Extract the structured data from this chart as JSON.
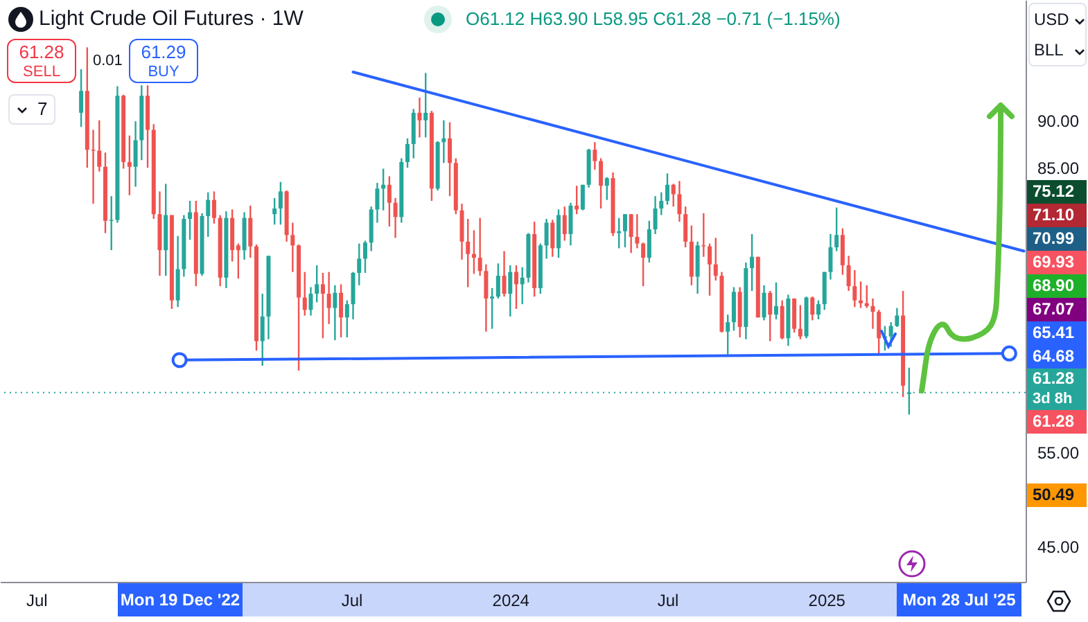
{
  "chart_data": {
    "type": "candlestick",
    "title": "Light Crude Oil Futures · 1W",
    "subtitle": "O61.12 H63.90 L58.95 C61.28 −0.71 (−1.15%)",
    "x": [
      "2022-08-22",
      "2022-08-29",
      "2022-09-05",
      "2022-09-12",
      "2022-09-19",
      "2022-09-26",
      "2022-10-03",
      "2022-10-10",
      "2022-10-17",
      "2022-10-24",
      "2022-10-31",
      "2022-11-07",
      "2022-11-14",
      "2022-11-21",
      "2022-11-28",
      "2022-12-05",
      "2022-12-12",
      "2022-12-19",
      "2022-12-26",
      "2023-01-02",
      "2023-01-09",
      "2023-01-16",
      "2023-01-23",
      "2023-01-30",
      "2023-02-06",
      "2023-02-13",
      "2023-02-20",
      "2023-02-27",
      "2023-03-06",
      "2023-03-13",
      "2023-03-20",
      "2023-03-27",
      "2023-04-03",
      "2023-04-10",
      "2023-04-17",
      "2023-04-24",
      "2023-05-01",
      "2023-05-08",
      "2023-05-15",
      "2023-05-22",
      "2023-05-29",
      "2023-06-05",
      "2023-06-12",
      "2023-06-19",
      "2023-06-26",
      "2023-07-03",
      "2023-07-10",
      "2023-07-17",
      "2023-07-24",
      "2023-07-31",
      "2023-08-07",
      "2023-08-14",
      "2023-08-21",
      "2023-08-28",
      "2023-09-04",
      "2023-09-11",
      "2023-09-18",
      "2023-09-25",
      "2023-10-02",
      "2023-10-09",
      "2023-10-16",
      "2023-10-23",
      "2023-10-30",
      "2023-11-06",
      "2023-11-13",
      "2023-11-20",
      "2023-11-27",
      "2023-12-04",
      "2023-12-11",
      "2023-12-18",
      "2023-12-25",
      "2024-01-01",
      "2024-01-08",
      "2024-01-15",
      "2024-01-22",
      "2024-01-29",
      "2024-02-05",
      "2024-02-12",
      "2024-02-19",
      "2024-02-26",
      "2024-03-04",
      "2024-03-11",
      "2024-03-18",
      "2024-03-25",
      "2024-04-01",
      "2024-04-08",
      "2024-04-15",
      "2024-04-22",
      "2024-04-29",
      "2024-05-06",
      "2024-05-13",
      "2024-05-20",
      "2024-05-27",
      "2024-06-03",
      "2024-06-10",
      "2024-06-17",
      "2024-06-24",
      "2024-07-01",
      "2024-07-08",
      "2024-07-15",
      "2024-07-22",
      "2024-07-29",
      "2024-08-05",
      "2024-08-12",
      "2024-08-19",
      "2024-08-26",
      "2024-09-02",
      "2024-09-09",
      "2024-09-16",
      "2024-09-23",
      "2024-09-30",
      "2024-10-07",
      "2024-10-14",
      "2024-10-21",
      "2024-10-28",
      "2024-11-04",
      "2024-11-11",
      "2024-11-18",
      "2024-11-25",
      "2024-12-02",
      "2024-12-09",
      "2024-12-16",
      "2024-12-23",
      "2024-12-30",
      "2025-01-06",
      "2025-01-13",
      "2025-01-20",
      "2025-01-27",
      "2025-02-03",
      "2025-02-10",
      "2025-02-17",
      "2025-02-24",
      "2025-03-03",
      "2025-03-10",
      "2025-03-17",
      "2025-03-24",
      "2025-03-31",
      "2025-04-07"
    ],
    "ohlc": [
      [
        90.8,
        95.4,
        89.3,
        93.1
      ],
      [
        93.1,
        97.7,
        85.0,
        86.9
      ],
      [
        86.9,
        89.0,
        81.2,
        86.8
      ],
      [
        86.8,
        90.0,
        84.6,
        85.1
      ],
      [
        85.1,
        86.6,
        78.1,
        79.4
      ],
      [
        79.4,
        82.0,
        76.3,
        79.5
      ],
      [
        79.5,
        93.6,
        79.2,
        92.6
      ],
      [
        92.6,
        92.7,
        84.9,
        85.6
      ],
      [
        85.6,
        88.4,
        82.1,
        85.1
      ],
      [
        85.1,
        89.9,
        83.0,
        87.9
      ],
      [
        87.9,
        93.7,
        85.8,
        92.6
      ],
      [
        92.6,
        93.7,
        85.0,
        89.0
      ],
      [
        89.0,
        89.6,
        79.6,
        80.1
      ],
      [
        80.1,
        82.5,
        73.6,
        76.3
      ],
      [
        76.3,
        83.3,
        73.6,
        80.0
      ],
      [
        80.0,
        80.0,
        70.1,
        71.0
      ],
      [
        71.0,
        77.8,
        70.3,
        74.3
      ],
      [
        74.3,
        80.0,
        73.5,
        79.6
      ],
      [
        79.6,
        81.5,
        77.4,
        80.3
      ],
      [
        80.3,
        81.5,
        72.5,
        73.8
      ],
      [
        73.8,
        80.2,
        73.6,
        79.9
      ],
      [
        79.9,
        82.4,
        77.7,
        81.6
      ],
      [
        81.6,
        82.5,
        79.1,
        79.7
      ],
      [
        79.7,
        80.0,
        72.5,
        73.4
      ],
      [
        73.4,
        80.4,
        72.3,
        79.7
      ],
      [
        79.7,
        80.6,
        75.1,
        76.3
      ],
      [
        76.8,
        77.0,
        73.3,
        76.3
      ],
      [
        76.3,
        80.3,
        75.3,
        79.7
      ],
      [
        79.7,
        81.0,
        75.5,
        76.7
      ],
      [
        76.7,
        76.9,
        65.7,
        66.7
      ],
      [
        66.7,
        71.7,
        64.1,
        69.3
      ],
      [
        69.3,
        75.7,
        66.9,
        75.7
      ],
      [
        80.1,
        81.8,
        79.0,
        80.7
      ],
      [
        80.7,
        83.5,
        79.0,
        82.5
      ],
      [
        82.5,
        82.6,
        77.2,
        77.9
      ],
      [
        77.9,
        79.2,
        74.0,
        76.8
      ],
      [
        76.8,
        76.9,
        63.6,
        71.3
      ],
      [
        71.3,
        74.0,
        69.4,
        70.0
      ],
      [
        70.0,
        72.4,
        69.4,
        71.7
      ],
      [
        71.7,
        74.7,
        70.8,
        72.7
      ],
      [
        72.7,
        73.9,
        67.0,
        71.7
      ],
      [
        71.7,
        74.0,
        68.5,
        70.2
      ],
      [
        70.2,
        72.6,
        66.8,
        71.8
      ],
      [
        71.8,
        72.7,
        67.1,
        69.2
      ],
      [
        69.2,
        71.0,
        67.1,
        70.6
      ],
      [
        70.6,
        74.0,
        69.0,
        73.9
      ],
      [
        73.9,
        77.0,
        72.6,
        75.4
      ],
      [
        75.4,
        77.3,
        73.9,
        77.1
      ],
      [
        77.1,
        80.9,
        76.2,
        80.6
      ],
      [
        80.6,
        83.4,
        79.2,
        82.8
      ],
      [
        82.8,
        84.9,
        80.5,
        83.2
      ],
      [
        83.2,
        84.1,
        78.8,
        81.3
      ],
      [
        81.3,
        81.8,
        77.6,
        79.8
      ],
      [
        79.8,
        86.0,
        79.2,
        85.6
      ],
      [
        85.6,
        88.1,
        85.0,
        87.5
      ],
      [
        87.5,
        91.2,
        86.0,
        90.8
      ],
      [
        90.8,
        92.4,
        88.2,
        90.0
      ],
      [
        90.0,
        95.0,
        88.2,
        90.8
      ],
      [
        90.8,
        91.0,
        81.5,
        82.8
      ],
      [
        82.8,
        87.8,
        82.6,
        87.7
      ],
      [
        87.7,
        90.0,
        85.5,
        88.1
      ],
      [
        88.1,
        89.8,
        82.0,
        85.5
      ],
      [
        85.5,
        86.0,
        80.1,
        80.5
      ],
      [
        80.5,
        81.2,
        75.3,
        77.2
      ],
      [
        77.2,
        79.6,
        72.4,
        75.9
      ],
      [
        75.9,
        78.4,
        73.8,
        75.5
      ],
      [
        75.5,
        79.7,
        73.6,
        74.1
      ],
      [
        74.1,
        74.8,
        67.7,
        71.2
      ],
      [
        71.2,
        72.3,
        68.0,
        71.4
      ],
      [
        71.4,
        74.9,
        71.2,
        73.6
      ],
      [
        73.6,
        76.2,
        71.4,
        71.7
      ],
      [
        71.7,
        74.7,
        69.3,
        74.0
      ],
      [
        74.0,
        74.7,
        70.1,
        72.7
      ],
      [
        72.7,
        74.5,
        70.6,
        73.4
      ],
      [
        73.4,
        78.1,
        72.9,
        78.0
      ],
      [
        78.0,
        79.3,
        71.4,
        72.3
      ],
      [
        72.3,
        77.0,
        71.7,
        76.8
      ],
      [
        76.8,
        79.6,
        75.4,
        79.2
      ],
      [
        79.2,
        79.5,
        75.6,
        76.5
      ],
      [
        76.5,
        80.6,
        75.5,
        80.0
      ],
      [
        80.0,
        80.9,
        77.3,
        78.0
      ],
      [
        78.0,
        81.3,
        76.8,
        81.0
      ],
      [
        81.0,
        83.1,
        80.1,
        80.6
      ],
      [
        80.6,
        83.2,
        80.5,
        83.2
      ],
      [
        83.2,
        87.0,
        82.9,
        86.9
      ],
      [
        86.9,
        87.7,
        84.8,
        85.7
      ],
      [
        85.7,
        86.0,
        80.7,
        83.1
      ],
      [
        83.1,
        84.0,
        81.6,
        83.9
      ],
      [
        83.9,
        84.5,
        77.8,
        78.1
      ],
      [
        78.1,
        79.7,
        76.5,
        78.3
      ],
      [
        78.3,
        80.1,
        76.6,
        80.1
      ],
      [
        80.1,
        80.1,
        76.0,
        77.7
      ],
      [
        77.7,
        80.1,
        76.5,
        77.0
      ],
      [
        77.0,
        77.1,
        72.5,
        75.5
      ],
      [
        75.5,
        79.4,
        75.0,
        78.5
      ],
      [
        78.5,
        82.0,
        78.0,
        80.7
      ],
      [
        80.7,
        82.4,
        80.0,
        81.5
      ],
      [
        81.5,
        84.4,
        81.1,
        83.2
      ],
      [
        83.2,
        83.3,
        80.9,
        82.2
      ],
      [
        82.2,
        83.6,
        79.3,
        80.1
      ],
      [
        80.1,
        80.9,
        76.6,
        77.2
      ],
      [
        77.2,
        78.9,
        72.6,
        73.5
      ],
      [
        73.5,
        77.2,
        71.7,
        76.8
      ],
      [
        76.8,
        80.2,
        75.6,
        76.7
      ],
      [
        76.7,
        77.0,
        71.5,
        74.8
      ],
      [
        74.8,
        77.6,
        73.1,
        73.6
      ],
      [
        73.6,
        74.0,
        67.6,
        67.7
      ],
      [
        67.7,
        69.5,
        65.3,
        68.7
      ],
      [
        68.7,
        72.4,
        67.8,
        71.9
      ],
      [
        71.9,
        72.4,
        67.1,
        68.2
      ],
      [
        68.2,
        75.0,
        66.9,
        74.4
      ],
      [
        74.4,
        78.0,
        72.0,
        75.6
      ],
      [
        75.6,
        75.6,
        69.2,
        69.2
      ],
      [
        69.2,
        72.6,
        68.9,
        71.8
      ],
      [
        71.8,
        72.0,
        66.7,
        69.5
      ],
      [
        69.5,
        72.9,
        69.0,
        70.4
      ],
      [
        70.4,
        71.0,
        66.9,
        67.0
      ],
      [
        67.0,
        71.6,
        66.2,
        71.2
      ],
      [
        71.2,
        71.2,
        67.6,
        68.0
      ],
      [
        68.0,
        70.5,
        66.9,
        67.2
      ],
      [
        67.2,
        71.4,
        67.0,
        71.3
      ],
      [
        71.3,
        71.4,
        68.9,
        69.5
      ],
      [
        69.5,
        71.0,
        69.0,
        70.6
      ],
      [
        70.6,
        74.0,
        70.0,
        74.0
      ],
      [
        74.0,
        78.0,
        73.2,
        76.6
      ],
      [
        76.6,
        80.8,
        76.2,
        77.9
      ],
      [
        77.9,
        78.6,
        73.7,
        74.7
      ],
      [
        74.7,
        75.7,
        72.0,
        72.5
      ],
      [
        72.5,
        74.2,
        70.3,
        71.0
      ],
      [
        71.0,
        73.0,
        70.2,
        70.7
      ],
      [
        70.7,
        72.6,
        70.2,
        70.4
      ],
      [
        70.4,
        71.2,
        68.0,
        69.8
      ],
      [
        69.8,
        70.0,
        65.2,
        67.0
      ],
      [
        67.0,
        68.3,
        65.7,
        67.2
      ],
      [
        67.2,
        68.7,
        66.1,
        68.3
      ],
      [
        68.3,
        70.2,
        68.2,
        69.4
      ],
      [
        69.4,
        72.0,
        60.8,
        62.0
      ],
      [
        61.12,
        63.9,
        58.95,
        61.28
      ]
    ],
    "series": [
      {
        "type": "line",
        "x": [
          "2023-07-03",
          "2025-08-18"
        ],
        "values": [
          95.1,
          76.2
        ],
        "color": "#2962ff"
      },
      {
        "type": "line",
        "x": [
          "2022-12-14",
          "2025-08-01"
        ],
        "values": [
          64.7,
          65.4
        ],
        "color": "#2962ff",
        "marker": "circle"
      }
    ],
    "ref_lines": [
      {
        "axis": "y",
        "value": 61.28,
        "color": "#26a69a",
        "line_style": "dotted"
      }
    ],
    "xlim": [
      "2022-05-20",
      "2025-08-20"
    ],
    "xticks": [
      {
        "value": "2022-07-01",
        "label": "Jul"
      },
      {
        "value": "2023-07-01",
        "label": "Jul"
      },
      {
        "value": "2024-01-01",
        "label": "2024"
      },
      {
        "value": "2024-07-01",
        "label": "Jul"
      },
      {
        "value": "2025-01-01",
        "label": "2025"
      }
    ],
    "ylim": [
      41.3,
      102.7
    ],
    "yticks": [
      {
        "value": 45,
        "label": "45.00"
      },
      {
        "value": 55,
        "label": "55.00"
      },
      {
        "value": 85,
        "label": "85.00"
      },
      {
        "value": 90,
        "label": "90.00"
      }
    ],
    "annotations": [
      "61.28",
      "SELL",
      "0.01",
      "61.29",
      "BUY",
      "7",
      "USD",
      "BLL",
      "75.12",
      "71.10",
      "70.99",
      "69.93",
      "68.90",
      "67.07",
      "65.41",
      "64.68",
      "61.28",
      "3d 8h",
      "61.28",
      "50.49",
      "Mon 19 Dec '22",
      "Mon 28 Jul '25"
    ]
  }
}
